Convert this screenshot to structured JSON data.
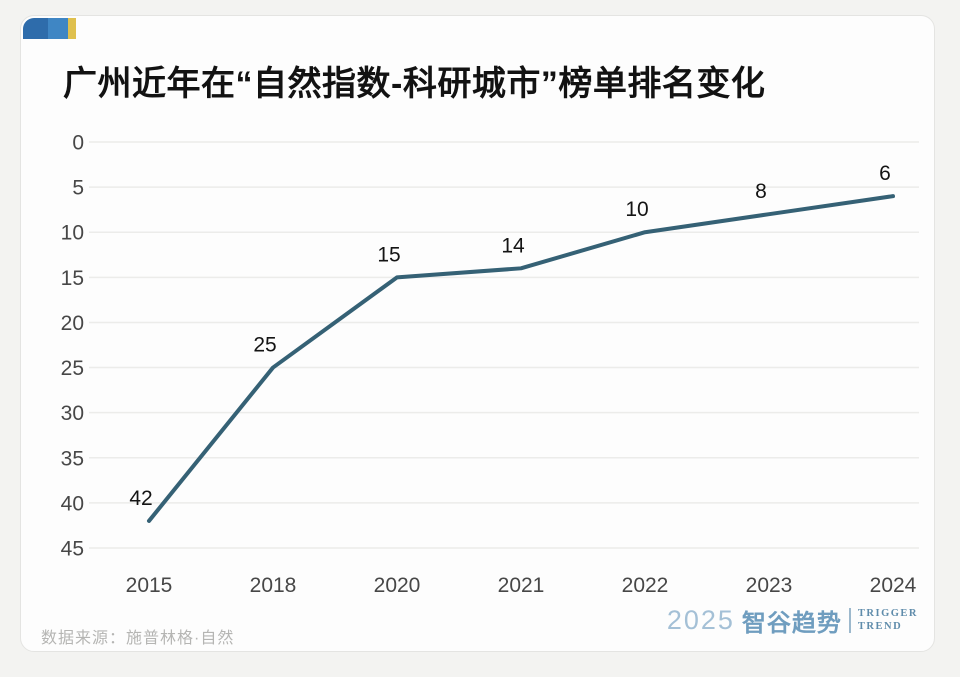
{
  "chart_data": {
    "type": "line",
    "title": "广州近年在“自然指数-科研城市”榜单排名变化",
    "categories": [
      "2015",
      "2018",
      "2020",
      "2021",
      "2022",
      "2023",
      "2024"
    ],
    "values": [
      42,
      25,
      15,
      14,
      10,
      8,
      6
    ],
    "data_labels": [
      "42",
      "25",
      "15",
      "14",
      "10",
      "8",
      "6"
    ],
    "y_ticks": [
      0,
      5,
      10,
      15,
      20,
      25,
      30,
      35,
      40,
      45
    ],
    "ylim": [
      0,
      45
    ],
    "y_axis_inverted": true,
    "grid": "horizontal-only",
    "legend": "none",
    "xlabel": "",
    "ylabel": ""
  },
  "footer": {
    "source": "数据来源：施普林格·自然",
    "logo": {
      "year": "2025",
      "brand": "智谷趋势",
      "tagline_line1": "TRIGGER",
      "tagline_line2": "TREND"
    }
  },
  "colors": {
    "line": "#356175",
    "grid": "#ececea",
    "deco_blue_dark": "#2e6cab",
    "deco_blue_light": "#3f86c4",
    "deco_yellow": "#dfc04e",
    "logo_blue": "#6f9dbf",
    "card_bg": "#fdfdfd",
    "page_bg": "#f3f3f1"
  }
}
